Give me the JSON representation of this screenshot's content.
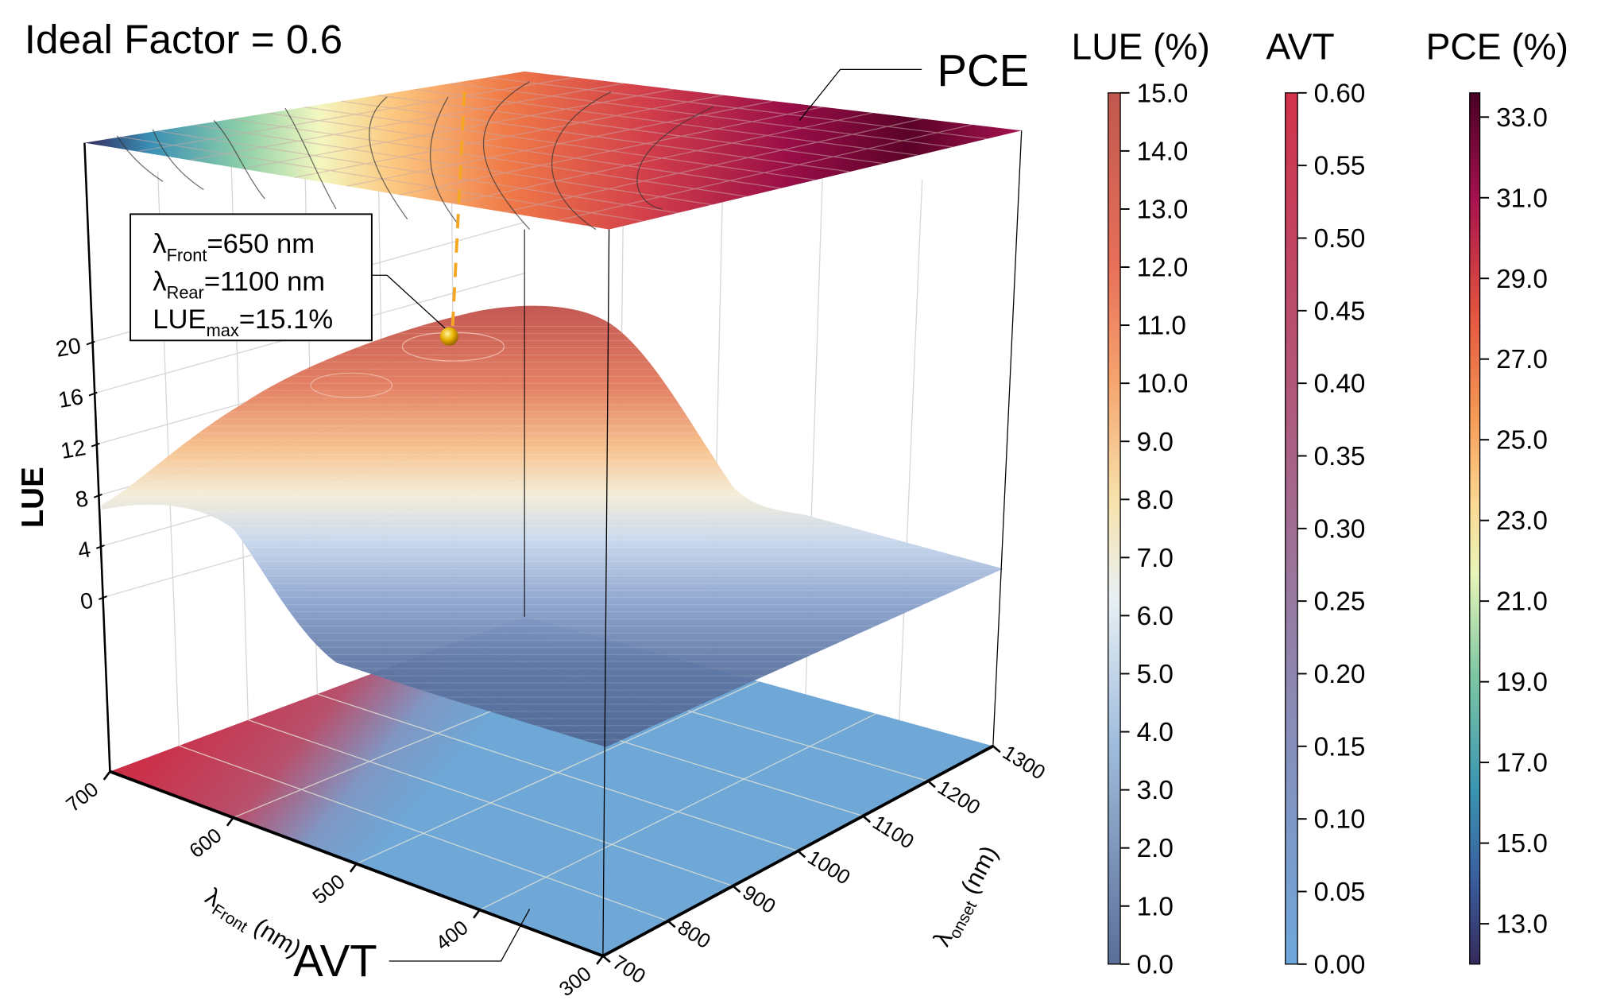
{
  "chart_data": {
    "type": "surface3d",
    "title": "Ideal Factor = 0.6",
    "x_axis": {
      "label": "λFront (nm)",
      "label_main": "λ",
      "label_sub": "Front",
      "label_unit": " (nm)",
      "range": [
        300,
        700
      ],
      "ticks": [
        "700",
        "600",
        "500",
        "400",
        "300"
      ]
    },
    "y_axis": {
      "label": "λonset (nm)",
      "label_main": "λ",
      "label_sub": "onset",
      "label_unit": " (nm)",
      "range": [
        700,
        1300
      ],
      "ticks": [
        "700",
        "800",
        "900",
        "1000",
        "1100",
        "1200",
        "1300"
      ]
    },
    "z_axis": {
      "label": "LUE",
      "range": [
        0,
        20
      ],
      "ticks": [
        "0",
        "4",
        "8",
        "12",
        "16",
        "20"
      ]
    },
    "projections": {
      "top": "PCE",
      "bottom": "AVT"
    },
    "annotation": {
      "lines": [
        {
          "main": "λ",
          "sub": "Front",
          "rest": "=650 nm"
        },
        {
          "main": "λ",
          "sub": "Rear",
          "rest": "=1100 nm"
        },
        {
          "main": "LUE",
          "sub": "max",
          "rest": "=15.1%"
        }
      ],
      "peak": {
        "lambda_front": 650,
        "lambda_rear": 1100,
        "lue_max": 15.1
      }
    },
    "colorbars": [
      {
        "title": "LUE (%)",
        "range": [
          0,
          15
        ],
        "ticks": [
          "15.0",
          "14.0",
          "13.0",
          "12.0",
          "11.0",
          "10.0",
          "9.0",
          "8.0",
          "7.0",
          "6.0",
          "5.0",
          "4.0",
          "3.0",
          "2.0",
          "1.0",
          "0.0"
        ],
        "colors": [
          "#5b6e96",
          "#8fb0d8",
          "#e8f0f4",
          "#f7e3ad",
          "#f6a46f",
          "#e2674f",
          "#c0584f"
        ]
      },
      {
        "title": "AVT",
        "range": [
          0,
          0.6
        ],
        "ticks": [
          "0.60",
          "0.55",
          "0.50",
          "0.45",
          "0.40",
          "0.35",
          "0.30",
          "0.25",
          "0.20",
          "0.15",
          "0.10",
          "0.05",
          "0.00"
        ],
        "colors": [
          "#6fa8dc",
          "#8a8ab4",
          "#a86a8a",
          "#d2324a"
        ]
      },
      {
        "title": "PCE (%)",
        "range": [
          12,
          33.6
        ],
        "ticks": [
          "33.0",
          "31.0",
          "29.0",
          "27.0",
          "25.0",
          "23.0",
          "21.0",
          "19.0",
          "17.0",
          "15.0",
          "13.0"
        ],
        "colors": [
          "#352a5c",
          "#3a6aa8",
          "#3a95b2",
          "#7cc6a4",
          "#e9f5b8",
          "#fbd892",
          "#f59a55",
          "#e3533f",
          "#a5124e",
          "#4a0124"
        ]
      }
    ],
    "grid": true
  }
}
